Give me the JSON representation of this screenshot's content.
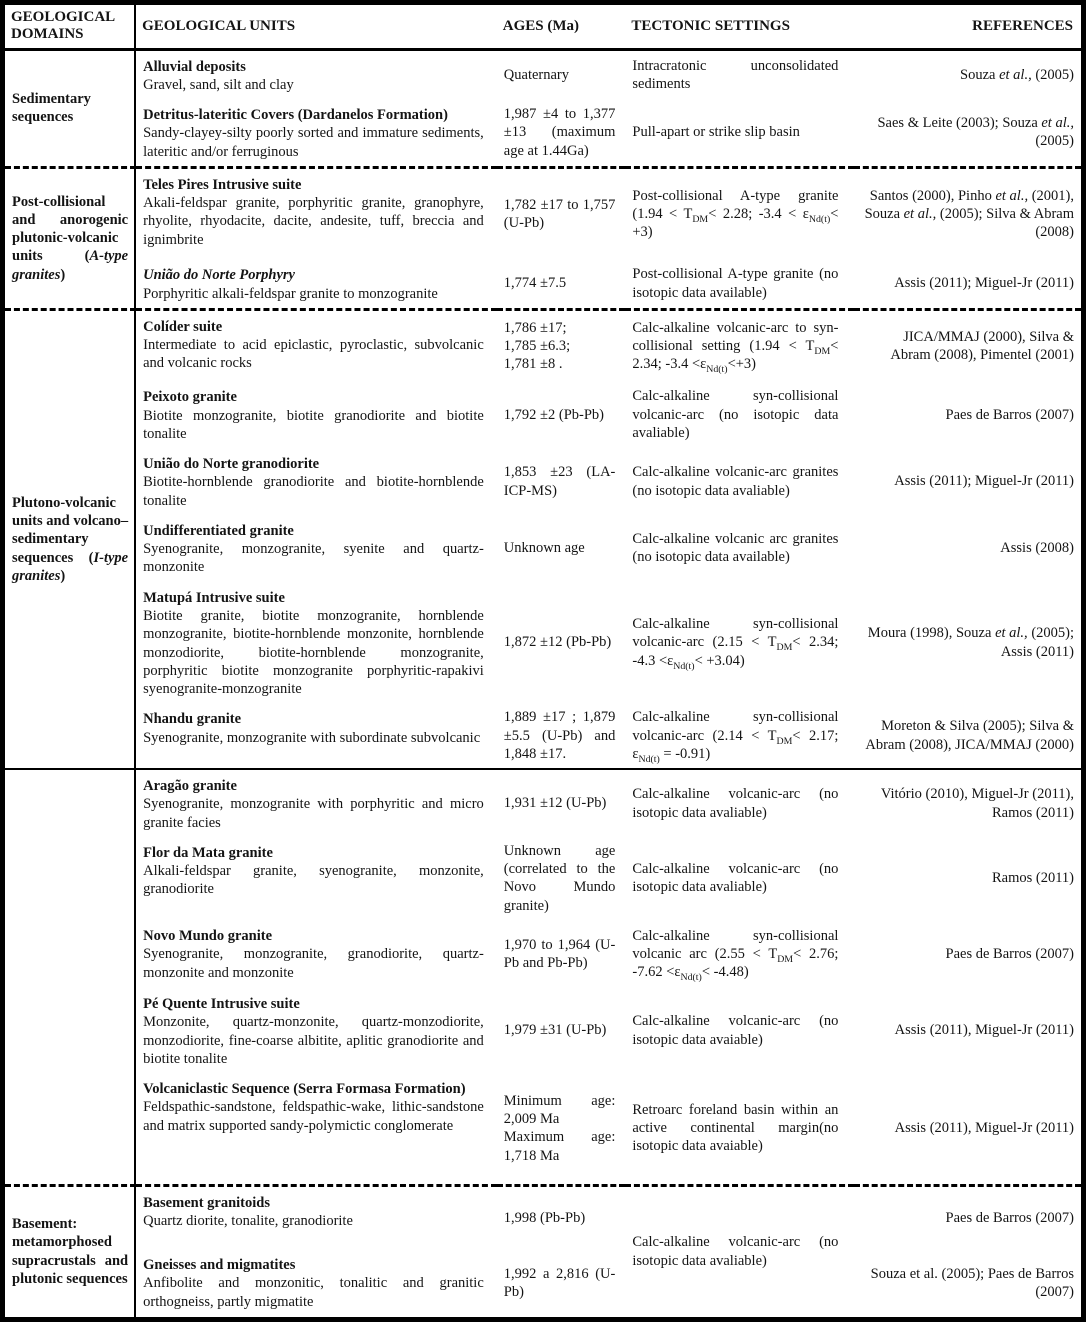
{
  "header": {
    "domains": "GEOLOGICAL DOMAINS",
    "units": "GEOLOGICAL UNITS",
    "ages": "AGES (Ma)",
    "tectonic": "TECTONIC SETTINGS",
    "references": "REFERENCES"
  },
  "sections": [
    {
      "domain": "Sedimentary sequences",
      "rows": [
        {
          "unit_title": "Alluvial deposits",
          "unit_desc": "Gravel, sand, silt and clay",
          "age": "Quaternary",
          "tectonic": "Intracratonic unconsolidated sediments",
          "refs": "Souza <i>et al.,</i> (2005)"
        },
        {
          "unit_title": "Detritus-lateritic Covers (Dardanelos Formation)",
          "unit_desc": "Sandy-clayey-silty poorly sorted and immature sediments, lateritic and/or ferruginous",
          "age": "1,987 ±4 to 1,377 ±13 (maximum age at 1.44Ga)",
          "tectonic": "Pull-apart or strike slip basin",
          "refs": "Saes &amp; Leite (2003); Souza <i>et al.,</i> (2005)"
        }
      ]
    },
    {
      "domain": "Post-collisional and anorogenic plutonic-volcanic units (<i>A-type granites</i>)",
      "rows": [
        {
          "unit_title": "Teles Pires Intrusive suite",
          "unit_desc": "Akali-feldspar granite, porphyritic granite, granophyre, rhyolite, rhyodacite, dacite, andesite, tuff, breccia and ignimbrite",
          "age": "1,782 ±17 to 1,757 (U-Pb)",
          "tectonic": "Post-collisional A-type granite (1.94 &lt; T<sub>DM</sub>&lt; 2.28; -3.4 &lt; ε<sub>Nd(t)</sub>&lt; +3)",
          "refs": "Santos (2000), Pinho <i>et al.,</i> (2001), Souza <i>et al.,</i> (2005); Silva &amp; Abram (2008)"
        },
        {
          "unit_title": "<i>União do Norte Porphyry</i>",
          "unit_desc": "Porphyritic alkali-feldspar granite to monzogranite",
          "age": "1,774 ±7.5",
          "tectonic": "Post-collisional A-type granite (no isotopic data available)",
          "refs": "Assis (2011); Miguel-Jr (2011)"
        }
      ]
    },
    {
      "domain": "Plutono-volcanic units and volcano–sedimentary sequences (<i>I-type granites</i>)",
      "rows": [
        {
          "unit_title": "Colíder suite",
          "unit_desc": "Intermediate to acid epiclastic, pyroclastic, subvolcanic and volcanic rocks",
          "age": "1,786 ±17;<br>1,785 ±6.3;<br>1,781 ±8 .",
          "tectonic": "Calc-alkaline volcanic-arc to syn-collisional setting (1.94 &lt; T<sub>DM</sub>&lt; 2.34; -3.4 &lt;ε<sub>Nd(t)</sub>&lt;+3)",
          "refs": "JICA/MMAJ (2000), Silva &amp; Abram (2008), Pimentel (2001)"
        },
        {
          "unit_title": "Peixoto granite",
          "unit_desc": "Biotite monzogranite, biotite granodiorite and biotite tonalite",
          "age": "1,792 ±2 (Pb-Pb)",
          "tectonic": "Calc-alkaline syn-collisional volcanic-arc (no isotopic data avaliable)",
          "refs": "Paes de Barros (2007)"
        },
        {
          "unit_title": "União do Norte granodiorite",
          "unit_desc": "Biotite-hornblende granodiorite and biotite-hornblende tonalite",
          "age": "1,853 ±23 (LA-ICP-MS)",
          "tectonic": "Calc-alkaline volcanic-arc granites (no isotopic data avaliable)",
          "refs": "Assis (2011); Miguel-Jr (2011)"
        },
        {
          "unit_title": "Undifferentiated granite",
          "unit_desc": "Syenogranite, monzogranite, syenite and quartz-monzonite",
          "age": "Unknown age",
          "tectonic": "Calc-alkaline volcanic arc granites (no isotopic data available)",
          "refs": "Assis (2008)"
        },
        {
          "unit_title": "Matupá Intrusive suite",
          "unit_desc": "Biotite granite, biotite monzogranite, hornblende monzogranite, biotite-hornblende monzonite, hornblende monzodiorite, biotite-hornblende monzogranite, porphyritic biotite monzogranite porphyritic-rapakivi syenogranite-monzogranite",
          "age": "1,872 ±12 (Pb-Pb)",
          "tectonic": "Calc-alkaline syn-collisional volcanic-arc (2.15 &lt; T<sub>DM</sub>&lt; 2.34; -4.3 &lt;ε<sub>Nd(t)</sub>&lt; +3.04)",
          "refs": "Moura (1998), Souza <i>et al.,</i> (2005); Assis (2011)"
        },
        {
          "unit_title": "Nhandu granite",
          "unit_desc": "Syenogranite, monzogranite with subordinate subvolcanic",
          "age": "1,889 ±17 ; 1,879 ±5.5 (U-Pb) and 1,848 ±17.",
          "tectonic": "Calc-alkaline syn-collisional volcanic-arc (2.14 &lt; T<sub>DM</sub>&lt; 2.17; ε<sub>Nd(t)</sub> = -0.91)",
          "refs": "Moreton &amp; Silva (2005); Silva &amp; Abram (2008), JICA/MMAJ (2000)"
        }
      ]
    },
    {
      "domain": "",
      "rows": [
        {
          "unit_title": "Aragão granite",
          "unit_desc": "Syenogranite, monzogranite with porphyritic and micro granite facies",
          "age": "1,931 ±12 (U-Pb)",
          "tectonic": "Calc-alkaline volcanic-arc (no isotopic data avaliable)",
          "refs": "Vitório (2010), Miguel-Jr (2011), Ramos (2011)"
        },
        {
          "unit_title": "Flor da Mata granite",
          "unit_desc": "Alkali-feldspar granite, syenogranite, monzonite, granodiorite",
          "age": "Unknown age (correlated to the Novo Mundo granite)",
          "tectonic": "Calc-alkaline volcanic-arc (no isotopic data avaliable)",
          "refs": "Ramos (2011)"
        },
        {
          "unit_title": "Novo Mundo granite",
          "unit_desc": "Syenogranite, monzogranite, granodiorite, quartz-monzonite and monzonite",
          "age": "1,970 to 1,964 (U-Pb and Pb-Pb)",
          "tectonic": "Calc-alkaline syn-collisional volcanic arc (2.55 &lt; T<sub>DM</sub>&lt; 2.76; -7.62 &lt;ε<sub>Nd(t)</sub>&lt; -4.48)",
          "refs": "Paes de Barros (2007)"
        },
        {
          "unit_title": "Pé Quente Intrusive suite",
          "unit_desc": "Monzonite, quartz-monzonite, quartz-monzodiorite, monzodiorite, fine-coarse albitite, aplitic granodiorite and biotite tonalite",
          "age": "1,979 ±31 (U-Pb)",
          "tectonic": "Calc-alkaline volcanic-arc (no isotopic data avaiable)",
          "refs": "Assis (2011), Miguel-Jr (2011)"
        },
        {
          "unit_title": "Volcaniclastic Sequence (Serra Formasa Formation)",
          "unit_desc": "Feldspathic-sandstone, feldspathic-wake, lithic-sandstone and matrix supported sandy-polymictic conglomerate",
          "age": "Minimum age: 2,009 Ma<br>Maximum age: 1,718 Ma",
          "tectonic": "Retroarc foreland basin within an active continental margin(no isotopic data avaiable)",
          "refs": "Assis (2011), Miguel-Jr (2011)"
        }
      ]
    },
    {
      "domain": "Basement: metamorphosed supracrustals and plutonic sequences",
      "tectonic_shared": "Calc-alkaline volcanic-arc (no isotopic data avaliable)",
      "rows": [
        {
          "unit_title": "Basement granitoids",
          "unit_desc": "Quartz diorite, tonalite, granodiorite",
          "age": "1,998 (Pb-Pb)",
          "refs": "Paes de Barros (2007)"
        },
        {
          "unit_title": "Gneisses and migmatites",
          "unit_desc": "Anfibolite and monzonitic, tonalitic and granitic orthogneiss, partly migmatite",
          "age": "1,992 a 2,816 (U-Pb)",
          "refs": "Souza et al. (2005); Paes de Barros (2007)"
        }
      ]
    }
  ]
}
